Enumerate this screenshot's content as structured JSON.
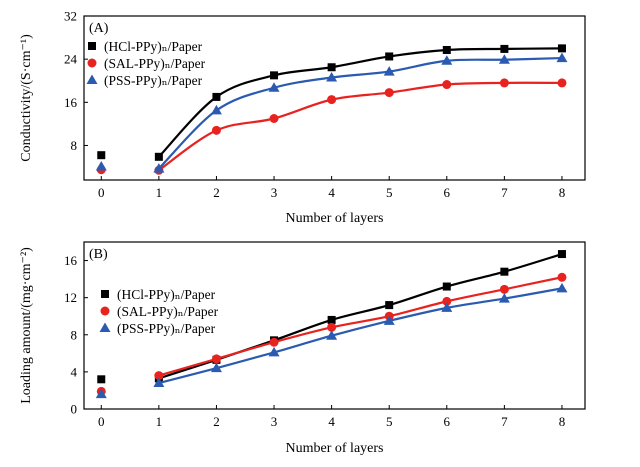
{
  "chart_data": [
    {
      "type": "scatter",
      "panel_label": "(A)",
      "xlabel": "Number of layers",
      "ylabel": "Conductivity/(S·cm⁻¹)",
      "xlim": [
        -0.3,
        8.4
      ],
      "ylim": [
        1.6,
        32
      ],
      "x_ticks": [
        0,
        1,
        2,
        3,
        4,
        5,
        6,
        7,
        8
      ],
      "y_ticks": [
        8,
        16,
        24,
        32
      ],
      "legend_position": "top-left",
      "fit_curves": true,
      "series": [
        {
          "name": "(HCl-PPy)ₙ/Paper",
          "marker": "square",
          "color": "#000000",
          "x": [
            0,
            1,
            2,
            3,
            4,
            5,
            6,
            7,
            8
          ],
          "y": [
            6.2,
            5.9,
            17.0,
            21.0,
            22.5,
            24.5,
            25.7,
            25.9,
            26.0
          ]
        },
        {
          "name": "(SAL-PPy)ₙ/Paper",
          "marker": "circle",
          "color": "#e8231f",
          "x": [
            0,
            1,
            2,
            3,
            4,
            5,
            6,
            7,
            8
          ],
          "y": [
            3.5,
            3.4,
            10.8,
            13.0,
            16.5,
            17.8,
            19.3,
            19.6,
            19.6
          ]
        },
        {
          "name": "(PSS-PPy)ₙ/Paper",
          "marker": "triangle",
          "color": "#2a5bb0",
          "x": [
            0,
            1,
            2,
            3,
            4,
            5,
            6,
            7,
            8
          ],
          "y": [
            4.1,
            3.7,
            14.5,
            18.7,
            20.6,
            21.7,
            23.7,
            23.9,
            24.2
          ]
        }
      ]
    },
    {
      "type": "scatter",
      "panel_label": "(B)",
      "xlabel": "Number of layers",
      "ylabel": "Loading amount/(mg·cm⁻²)",
      "xlim": [
        -0.3,
        8.4
      ],
      "ylim": [
        0,
        18
      ],
      "x_ticks": [
        0,
        1,
        2,
        3,
        4,
        5,
        6,
        7,
        8
      ],
      "y_ticks": [
        0,
        4,
        8,
        12,
        16
      ],
      "legend_position": "middle-left",
      "fit_curves": true,
      "series": [
        {
          "name": "(HCl-PPy)ₙ/Paper",
          "marker": "square",
          "color": "#000000",
          "x": [
            0,
            1,
            2,
            3,
            4,
            5,
            6,
            7,
            8
          ],
          "y": [
            3.2,
            3.3,
            5.3,
            7.4,
            9.6,
            11.2,
            13.2,
            14.8,
            16.7
          ]
        },
        {
          "name": "(SAL-PPy)ₙ/Paper",
          "marker": "circle",
          "color": "#e8231f",
          "x": [
            0,
            1,
            2,
            3,
            4,
            5,
            6,
            7,
            8
          ],
          "y": [
            1.9,
            3.6,
            5.4,
            7.2,
            8.8,
            10.0,
            11.6,
            12.9,
            14.2
          ]
        },
        {
          "name": "(PSS-PPy)ₙ/Paper",
          "marker": "triangle",
          "color": "#2a5bb0",
          "x": [
            0,
            1,
            2,
            3,
            4,
            5,
            6,
            7,
            8
          ],
          "y": [
            1.6,
            2.8,
            4.4,
            6.1,
            7.9,
            9.5,
            10.9,
            11.9,
            13.0
          ]
        }
      ]
    }
  ]
}
